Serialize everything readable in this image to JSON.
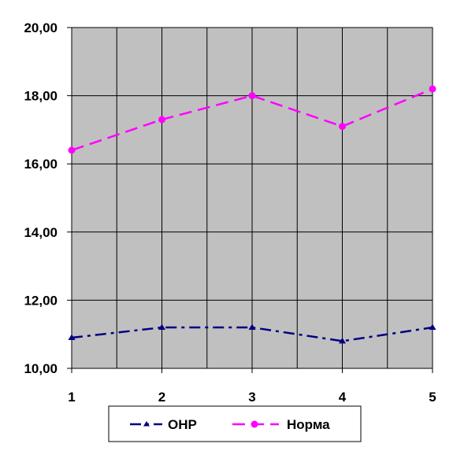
{
  "chart_data": {
    "type": "line",
    "x": [
      1,
      2,
      3,
      4,
      5
    ],
    "x_tick_labels": [
      "1",
      "2",
      "3",
      "4",
      "5"
    ],
    "ylim": [
      10,
      20
    ],
    "y_ticks": [
      10,
      12,
      14,
      16,
      18,
      20
    ],
    "y_tick_labels": [
      "10,00",
      "12,00",
      "14,00",
      "16,00",
      "18,00",
      "20,00"
    ],
    "grid": true,
    "plot_background": "#C0C0C0",
    "legend_position": "bottom",
    "series": [
      {
        "name": "ОНР",
        "values": [
          10.9,
          11.2,
          11.2,
          10.8,
          11.2
        ],
        "color": "#000080",
        "line_style": "dash-dot",
        "marker": "triangle"
      },
      {
        "name": "Норма",
        "values": [
          16.4,
          17.3,
          18.0,
          17.1,
          18.2
        ],
        "color": "#FF00FF",
        "line_style": "dashed",
        "marker": "circle"
      }
    ]
  }
}
